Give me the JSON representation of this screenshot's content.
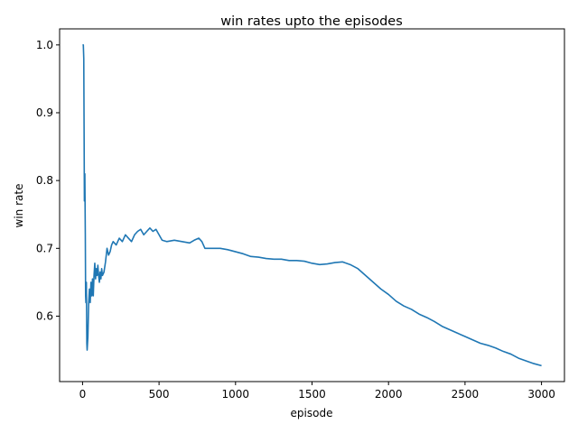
{
  "chart_data": {
    "type": "line",
    "title": "win rates upto the episodes",
    "xlabel": "episode",
    "ylabel": "win rate",
    "xlim": [
      -150,
      3150
    ],
    "ylim": [
      0.5035,
      1.0237
    ],
    "xticks": [
      0,
      500,
      1000,
      1500,
      2000,
      2500,
      3000
    ],
    "xtick_labels": [
      "0",
      "500",
      "1000",
      "1500",
      "2000",
      "2500",
      "3000"
    ],
    "yticks": [
      0.6,
      0.7,
      0.8,
      0.9,
      1.0
    ],
    "ytick_labels": [
      "0.6",
      "0.7",
      "0.8",
      "0.9",
      "1.0"
    ],
    "grid": false,
    "series": [
      {
        "color": "#1f77b4",
        "x": [
          0,
          5,
          8,
          10,
          12,
          15,
          18,
          20,
          22,
          25,
          28,
          30,
          35,
          40,
          45,
          50,
          55,
          60,
          65,
          70,
          75,
          80,
          85,
          90,
          95,
          100,
          105,
          110,
          115,
          120,
          125,
          130,
          140,
          150,
          160,
          170,
          180,
          190,
          200,
          220,
          240,
          260,
          280,
          300,
          320,
          340,
          360,
          380,
          400,
          420,
          440,
          460,
          480,
          500,
          520,
          550,
          600,
          650,
          700,
          730,
          760,
          780,
          800,
          850,
          900,
          950,
          1000,
          1050,
          1100,
          1150,
          1200,
          1250,
          1300,
          1350,
          1400,
          1450,
          1500,
          1550,
          1600,
          1650,
          1700,
          1750,
          1800,
          1850,
          1900,
          1950,
          2000,
          2050,
          2100,
          2150,
          2200,
          2250,
          2300,
          2350,
          2400,
          2450,
          2500,
          2550,
          2600,
          2650,
          2700,
          2750,
          2800,
          2850,
          2900,
          2950,
          3000
        ],
        "y": [
          1.0,
          1.0,
          0.98,
          0.88,
          0.77,
          0.81,
          0.72,
          0.63,
          0.62,
          0.65,
          0.56,
          0.55,
          0.57,
          0.62,
          0.64,
          0.62,
          0.65,
          0.63,
          0.655,
          0.63,
          0.66,
          0.678,
          0.655,
          0.67,
          0.66,
          0.675,
          0.66,
          0.65,
          0.665,
          0.655,
          0.67,
          0.66,
          0.665,
          0.68,
          0.7,
          0.69,
          0.695,
          0.705,
          0.71,
          0.705,
          0.715,
          0.71,
          0.72,
          0.715,
          0.71,
          0.72,
          0.725,
          0.728,
          0.72,
          0.725,
          0.73,
          0.725,
          0.728,
          0.72,
          0.712,
          0.71,
          0.712,
          0.71,
          0.708,
          0.712,
          0.715,
          0.71,
          0.7,
          0.7,
          0.7,
          0.698,
          0.695,
          0.692,
          0.688,
          0.687,
          0.685,
          0.684,
          0.684,
          0.682,
          0.682,
          0.681,
          0.678,
          0.676,
          0.677,
          0.679,
          0.68,
          0.676,
          0.67,
          0.66,
          0.65,
          0.64,
          0.632,
          0.622,
          0.615,
          0.61,
          0.603,
          0.598,
          0.592,
          0.585,
          0.58,
          0.575,
          0.57,
          0.565,
          0.56,
          0.557,
          0.553,
          0.548,
          0.544,
          0.538,
          0.534,
          0.53,
          0.527
        ]
      }
    ]
  }
}
